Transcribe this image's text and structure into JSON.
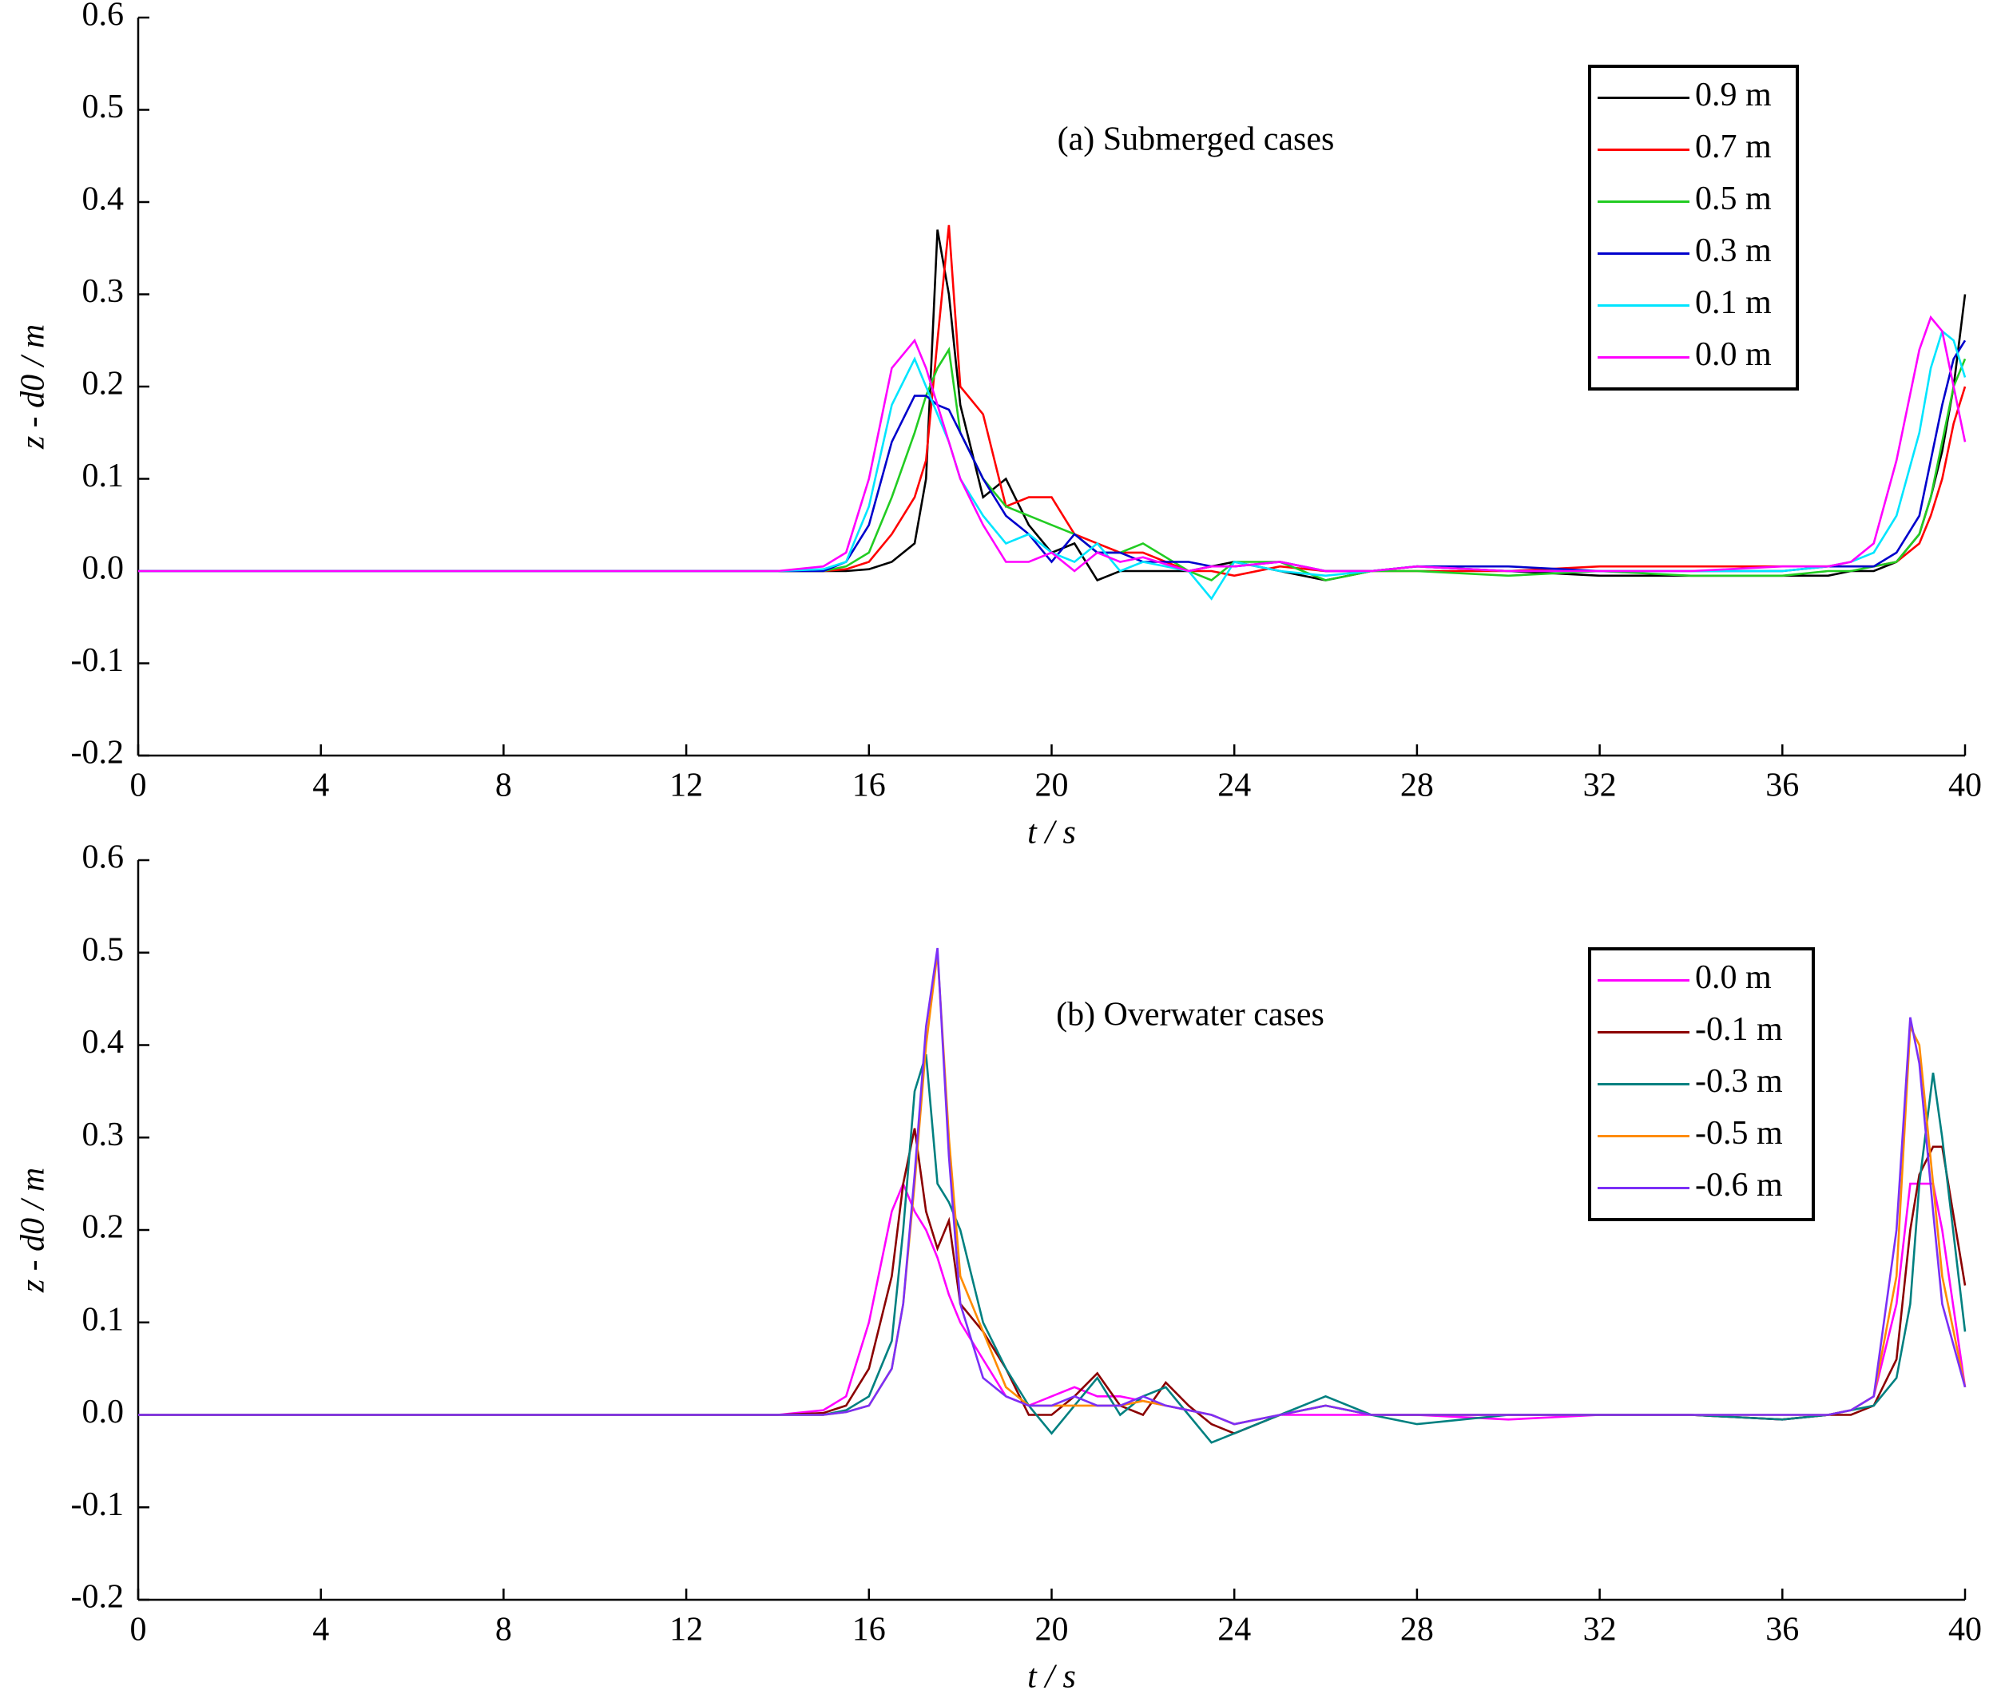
{
  "chart_data": [
    {
      "type": "line",
      "annotation": "(a) Submerged cases",
      "xlabel": "t / s",
      "ylabel": "z - d0 / m",
      "xlim": [
        0,
        40
      ],
      "ylim": [
        -0.2,
        0.6
      ],
      "xticks": [
        0,
        4,
        8,
        12,
        16,
        20,
        24,
        28,
        32,
        36,
        40
      ],
      "yticks": [
        -0.2,
        -0.1,
        {
          "value": 0,
          "label": "0.0"
        },
        0.1,
        0.2,
        0.3,
        0.4,
        0.5,
        0.6
      ],
      "legend": "upper right",
      "x": [
        0,
        4,
        8,
        12,
        14,
        15,
        15.5,
        16,
        16.5,
        17,
        17.25,
        17.5,
        17.75,
        18,
        18.5,
        19,
        19.5,
        20,
        20.5,
        21,
        21.5,
        22,
        23,
        23.5,
        24,
        25,
        26,
        27,
        28,
        30,
        32,
        34,
        36,
        37,
        37.5,
        38,
        38.5,
        39,
        39.25,
        39.5,
        39.75,
        40
      ],
      "series": [
        {
          "name": "0.9 m",
          "color": "#000000",
          "values": [
            0,
            0,
            0,
            0,
            0,
            0,
            0,
            0.002,
            0.01,
            0.03,
            0.1,
            0.37,
            0.3,
            0.18,
            0.08,
            0.1,
            0.05,
            0.02,
            0.03,
            -0.01,
            0,
            0,
            0,
            0.005,
            0.01,
            0,
            -0.01,
            0,
            0.005,
            0,
            -0.005,
            -0.005,
            -0.005,
            -0.005,
            0,
            0,
            0.01,
            0.04,
            0.08,
            0.13,
            0.2,
            0.3
          ]
        },
        {
          "name": "0.7 m",
          "color": "#ff0000",
          "values": [
            0,
            0,
            0,
            0,
            0,
            0,
            0.002,
            0.01,
            0.04,
            0.08,
            0.12,
            0.25,
            0.375,
            0.2,
            0.17,
            0.07,
            0.08,
            0.08,
            0.04,
            0.03,
            0.02,
            0.02,
            0,
            0,
            -0.005,
            0.005,
            0,
            0,
            0,
            0,
            0.005,
            0.005,
            0.005,
            0.005,
            0.005,
            0.005,
            0.01,
            0.03,
            0.06,
            0.1,
            0.16,
            0.2
          ]
        },
        {
          "name": "0.5 m",
          "color": "#22cc22",
          "values": [
            0,
            0,
            0,
            0,
            0,
            0,
            0.005,
            0.02,
            0.08,
            0.15,
            0.19,
            0.22,
            0.24,
            0.15,
            0.1,
            0.07,
            0.06,
            0.05,
            0.04,
            0.02,
            0.02,
            0.03,
            0,
            -0.01,
            0.01,
            0.01,
            -0.01,
            0,
            0,
            -0.005,
            0,
            -0.005,
            -0.005,
            0,
            0,
            0.005,
            0.01,
            0.04,
            0.08,
            0.14,
            0.2,
            0.23
          ]
        },
        {
          "name": "0.3 m",
          "color": "#0000cc",
          "values": [
            0,
            0,
            0,
            0,
            0,
            0,
            0.01,
            0.05,
            0.14,
            0.19,
            0.19,
            0.18,
            0.175,
            0.15,
            0.1,
            0.06,
            0.04,
            0.01,
            0.04,
            0.02,
            0.02,
            0.01,
            0.01,
            0.005,
            0.005,
            0.01,
            0,
            0,
            0.005,
            0.005,
            0,
            0,
            0,
            0.005,
            0.005,
            0.005,
            0.02,
            0.06,
            0.12,
            0.18,
            0.23,
            0.25
          ]
        },
        {
          "name": "0.1 m",
          "color": "#00e5ff",
          "values": [
            0,
            0,
            0,
            0,
            0,
            0.002,
            0.01,
            0.07,
            0.18,
            0.23,
            0.2,
            0.17,
            0.14,
            0.1,
            0.06,
            0.03,
            0.04,
            0.02,
            0.01,
            0.03,
            0,
            0.01,
            0,
            -0.03,
            0.01,
            0,
            -0.005,
            0,
            0.005,
            0,
            0,
            0,
            0,
            0.005,
            0.01,
            0.02,
            0.06,
            0.15,
            0.22,
            0.26,
            0.25,
            0.21
          ]
        },
        {
          "name": "0.0 m",
          "color": "#ff00ff",
          "values": [
            0,
            0,
            0,
            0,
            0,
            0.005,
            0.02,
            0.1,
            0.22,
            0.25,
            0.22,
            0.18,
            0.14,
            0.1,
            0.05,
            0.01,
            0.01,
            0.02,
            0,
            0.02,
            0.01,
            0.015,
            0,
            0.005,
            0.005,
            0.01,
            0,
            0,
            0.005,
            0,
            0,
            0,
            0.005,
            0.005,
            0.01,
            0.03,
            0.12,
            0.24,
            0.275,
            0.26,
            0.2,
            0.14
          ]
        }
      ]
    },
    {
      "type": "line",
      "annotation": "(b) Overwater cases",
      "xlabel": "t / s",
      "ylabel": "z - d0 / m",
      "xlim": [
        0,
        40
      ],
      "ylim": [
        -0.2,
        0.6
      ],
      "xticks": [
        0,
        4,
        8,
        12,
        16,
        20,
        24,
        28,
        32,
        36,
        40
      ],
      "yticks": [
        -0.2,
        -0.1,
        {
          "value": 0,
          "label": "0.0"
        },
        0.1,
        0.2,
        0.3,
        0.4,
        0.5,
        0.6
      ],
      "legend": "upper right",
      "x": [
        0,
        4,
        8,
        12,
        14,
        15,
        15.5,
        16,
        16.5,
        16.75,
        17,
        17.25,
        17.5,
        17.75,
        18,
        18.5,
        19,
        19.5,
        20,
        20.5,
        21,
        21.5,
        22,
        22.5,
        23,
        23.5,
        24,
        25,
        26,
        27,
        28,
        30,
        32,
        34,
        36,
        37,
        37.5,
        38,
        38.5,
        38.8,
        39,
        39.3,
        39.5,
        40
      ],
      "series": [
        {
          "name": "0.0 m",
          "color": "#ff00ff",
          "values": [
            0,
            0,
            0,
            0,
            0,
            0.005,
            0.02,
            0.1,
            0.22,
            0.25,
            0.22,
            0.2,
            0.17,
            0.13,
            0.1,
            0.06,
            0.02,
            0.01,
            0.02,
            0.03,
            0.02,
            0.02,
            0.015,
            0.01,
            0.005,
            0,
            -0.01,
            0,
            0,
            0,
            0,
            -0.005,
            0,
            0,
            -0.005,
            0,
            0.005,
            0.02,
            0.12,
            0.25,
            0.25,
            0.25,
            0.2,
            0.03
          ]
        },
        {
          "name": "-0.1 m",
          "color": "#8b0000",
          "values": [
            0,
            0,
            0,
            0,
            0,
            0.002,
            0.01,
            0.05,
            0.15,
            0.25,
            0.31,
            0.22,
            0.18,
            0.21,
            0.12,
            0.09,
            0.05,
            0,
            0,
            0.02,
            0.045,
            0.01,
            0,
            0.035,
            0.01,
            -0.01,
            -0.02,
            0,
            0.01,
            0,
            0,
            0,
            0,
            0,
            -0.005,
            0,
            0,
            0.01,
            0.06,
            0.2,
            0.26,
            0.29,
            0.29,
            0.14
          ]
        },
        {
          "name": "-0.3 m",
          "color": "#008080",
          "values": [
            0,
            0,
            0,
            0,
            0,
            0,
            0.005,
            0.02,
            0.08,
            0.2,
            0.35,
            0.39,
            0.25,
            0.23,
            0.2,
            0.1,
            0.05,
            0.01,
            -0.02,
            0.01,
            0.04,
            0,
            0.02,
            0.03,
            0,
            -0.03,
            -0.02,
            0,
            0.02,
            0,
            -0.01,
            0,
            0,
            0,
            -0.005,
            0,
            0.005,
            0.01,
            0.04,
            0.12,
            0.25,
            0.37,
            0.3,
            0.09
          ]
        },
        {
          "name": "-0.5 m",
          "color": "#ff8c00",
          "values": [
            0,
            0,
            0,
            0,
            0,
            0,
            0.003,
            0.01,
            0.05,
            0.12,
            0.25,
            0.4,
            0.5,
            0.3,
            0.15,
            0.09,
            0.03,
            0.01,
            0.01,
            0.01,
            0.01,
            0.01,
            0.015,
            0.01,
            0.005,
            0,
            -0.01,
            0,
            0.01,
            0,
            0,
            0,
            0,
            0,
            0,
            0,
            0.005,
            0.02,
            0.15,
            0.42,
            0.4,
            0.25,
            0.15,
            0.03
          ]
        },
        {
          "name": "-0.6 m",
          "color": "#7b2ff7",
          "values": [
            0,
            0,
            0,
            0,
            0,
            0,
            0.003,
            0.01,
            0.05,
            0.12,
            0.26,
            0.42,
            0.505,
            0.28,
            0.12,
            0.04,
            0.02,
            0.01,
            0.01,
            0.02,
            0.01,
            0.01,
            0.02,
            0.01,
            0.005,
            0,
            -0.01,
            0,
            0.01,
            0,
            0,
            0,
            0,
            0,
            0,
            0,
            0.005,
            0.02,
            0.2,
            0.43,
            0.38,
            0.22,
            0.12,
            0.03
          ]
        }
      ]
    }
  ]
}
